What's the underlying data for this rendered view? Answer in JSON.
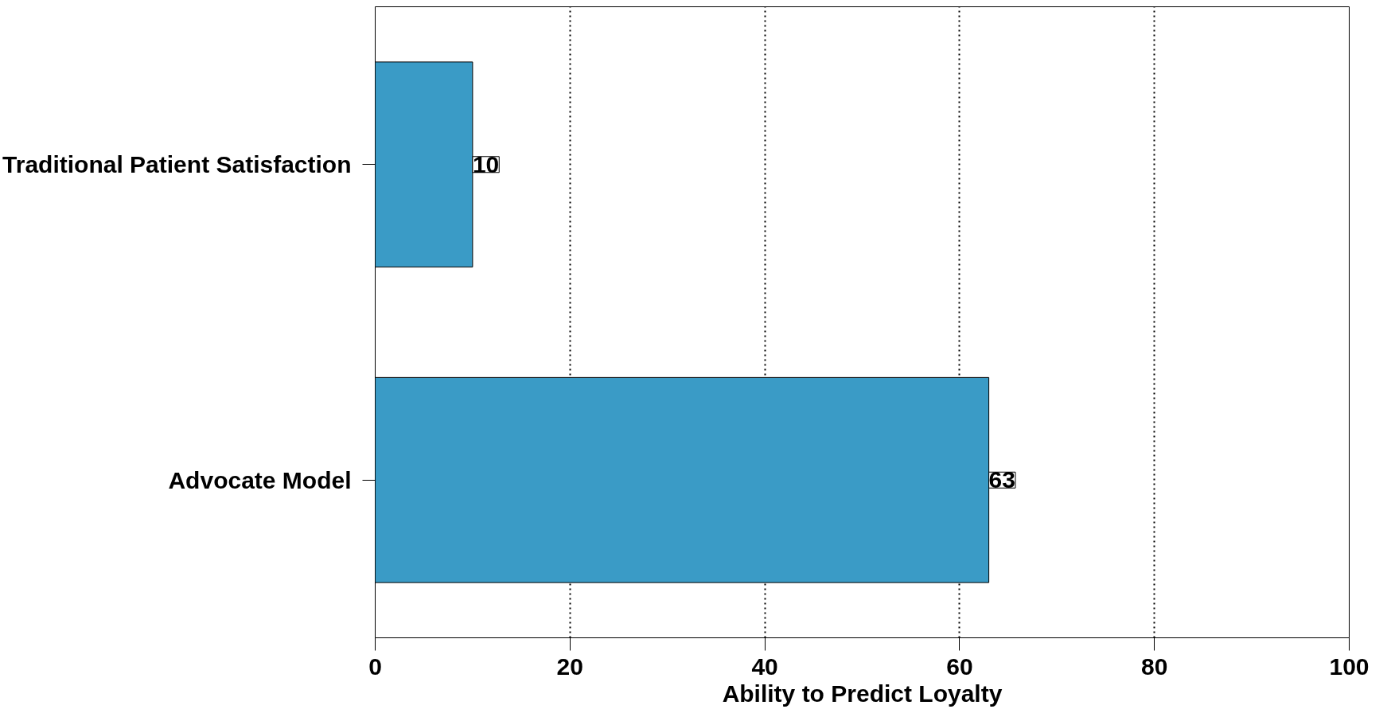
{
  "chart_data": {
    "type": "bar",
    "orientation": "horizontal",
    "xlabel": "Ability to Predict Loyalty",
    "categories": [
      "Traditional Patient Satisfaction",
      "Advocate Model"
    ],
    "values": [
      10,
      63
    ],
    "color": "#3a9bc6",
    "data_labels": true,
    "xlim": [
      0,
      100
    ],
    "xticks": [
      0,
      20,
      40,
      60,
      80,
      100
    ],
    "grid": "x"
  }
}
